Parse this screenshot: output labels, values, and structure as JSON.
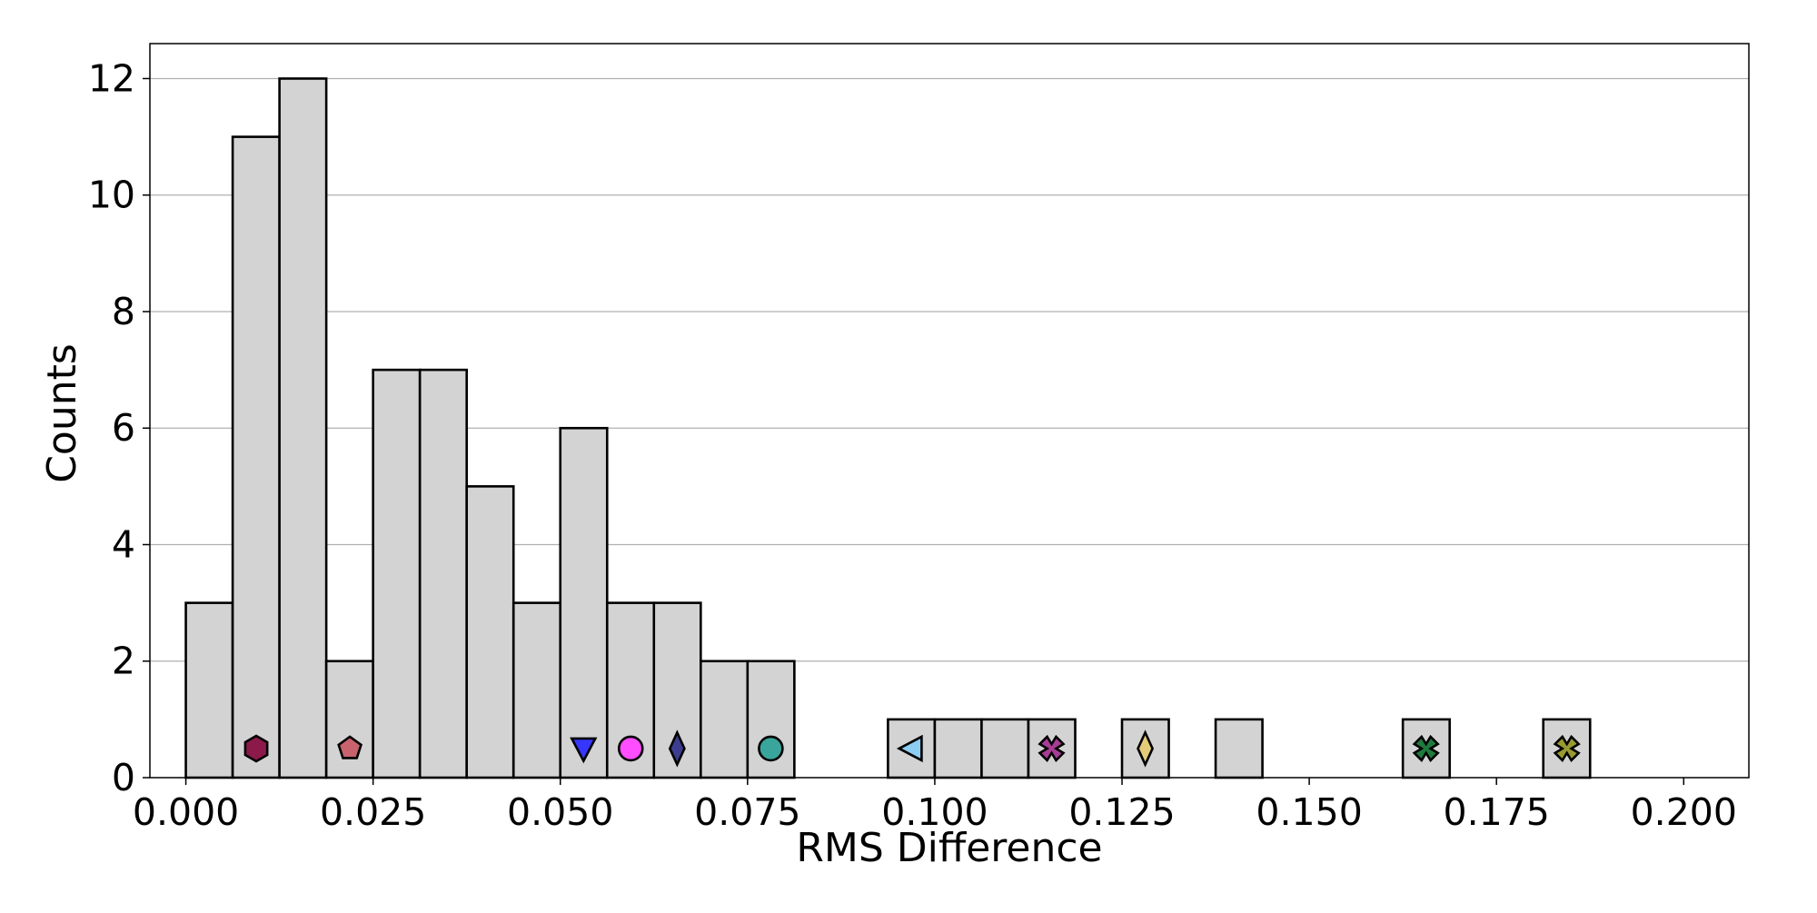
{
  "chart_data": {
    "type": "bar",
    "subtype": "histogram",
    "title": "",
    "xlabel": "RMS Difference",
    "ylabel": "Counts",
    "xlim": [
      -0.0048,
      0.2087
    ],
    "ylim": [
      0,
      12.6
    ],
    "xticks": [
      0.0,
      0.025,
      0.05,
      0.075,
      0.1,
      0.125,
      0.15,
      0.175,
      0.2
    ],
    "xtick_labels": [
      "0.000",
      "0.025",
      "0.050",
      "0.075",
      "0.100",
      "0.125",
      "0.150",
      "0.175",
      "0.200"
    ],
    "yticks": [
      0,
      2,
      4,
      6,
      8,
      10,
      12
    ],
    "ytick_labels": [
      "0",
      "2",
      "4",
      "6",
      "8",
      "10",
      "12"
    ],
    "grid": {
      "axis": "y",
      "on": true
    },
    "bin_edges": [
      0.0,
      0.00625,
      0.0125,
      0.01875,
      0.025,
      0.03125,
      0.0375,
      0.04375,
      0.05,
      0.05625,
      0.0625,
      0.06875,
      0.075,
      0.08125,
      0.0875,
      0.09375,
      0.1,
      0.10625,
      0.1125,
      0.11875,
      0.125,
      0.13125,
      0.1375,
      0.14375,
      0.15,
      0.15625,
      0.1625,
      0.16875,
      0.175,
      0.18125,
      0.1875,
      0.19375
    ],
    "counts": [
      3,
      11,
      12,
      2,
      7,
      7,
      5,
      3,
      6,
      3,
      3,
      2,
      2,
      0,
      0,
      1,
      1,
      1,
      1,
      0,
      1,
      0,
      1,
      0,
      0,
      0,
      1,
      0,
      0,
      1,
      0
    ],
    "bar_color": "#d3d3d3",
    "bar_edge_color": "#000000",
    "markers": [
      {
        "x": 0.0094,
        "y": 0.5,
        "shape": "hexagon",
        "color": "#8b1a4a"
      },
      {
        "x": 0.0219,
        "y": 0.5,
        "shape": "pentagon",
        "color": "#c8636e"
      },
      {
        "x": 0.0531,
        "y": 0.5,
        "shape": "triangle-down",
        "color": "#3636ff"
      },
      {
        "x": 0.0594,
        "y": 0.5,
        "shape": "circle",
        "color": "#ff4dff"
      },
      {
        "x": 0.0656,
        "y": 0.5,
        "shape": "thin-diamond",
        "color": "#3d3d8f"
      },
      {
        "x": 0.0781,
        "y": 0.5,
        "shape": "circle",
        "color": "#3aa59a"
      },
      {
        "x": 0.0969,
        "y": 0.5,
        "shape": "triangle-left",
        "color": "#8ecdf2"
      },
      {
        "x": 0.1156,
        "y": 0.5,
        "shape": "x-filled",
        "color": "#a63d94"
      },
      {
        "x": 0.1281,
        "y": 0.5,
        "shape": "thin-diamond",
        "color": "#e3cb7a"
      },
      {
        "x": 0.1656,
        "y": 0.5,
        "shape": "x-filled",
        "color": "#1f7a3d"
      },
      {
        "x": 0.1844,
        "y": 0.5,
        "shape": "x-filled",
        "color": "#999933"
      }
    ]
  }
}
